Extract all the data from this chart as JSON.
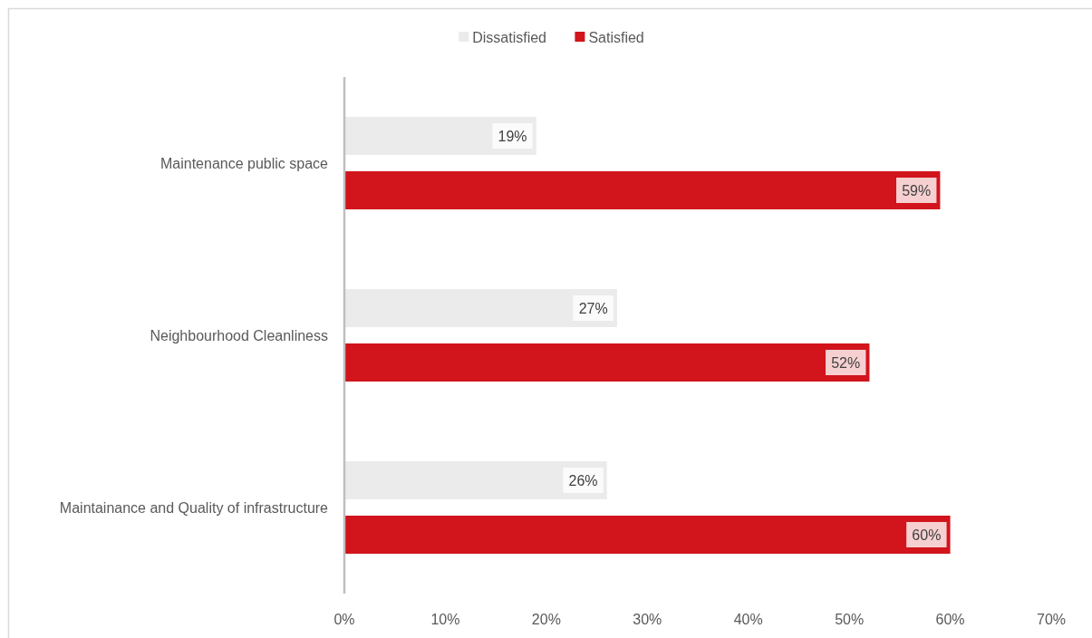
{
  "chart_data": {
    "type": "bar",
    "orientation": "horizontal",
    "categories": [
      "Maintenance public space",
      "Neighbourhood Cleanliness",
      "Maintainance and Quality of infrastructure"
    ],
    "series": [
      {
        "name": "Dissatisfied",
        "color": "#ebebeb",
        "values": [
          19,
          27,
          26
        ],
        "value_labels": [
          "19%",
          "27%",
          "26%"
        ]
      },
      {
        "name": "Satisfied",
        "color": "#d2141c",
        "values": [
          59,
          52,
          60
        ],
        "value_labels": [
          "59%",
          "52%",
          "60%"
        ]
      }
    ],
    "xlim": [
      0,
      70
    ],
    "xticks": [
      {
        "value": 0,
        "label": "0%"
      },
      {
        "value": 10,
        "label": "10%"
      },
      {
        "value": 20,
        "label": "20%"
      },
      {
        "value": 30,
        "label": "30%"
      },
      {
        "value": 40,
        "label": "40%"
      },
      {
        "value": 50,
        "label": "50%"
      },
      {
        "value": 60,
        "label": "60%"
      },
      {
        "value": 70,
        "label": "70%"
      }
    ],
    "legend": "top"
  }
}
